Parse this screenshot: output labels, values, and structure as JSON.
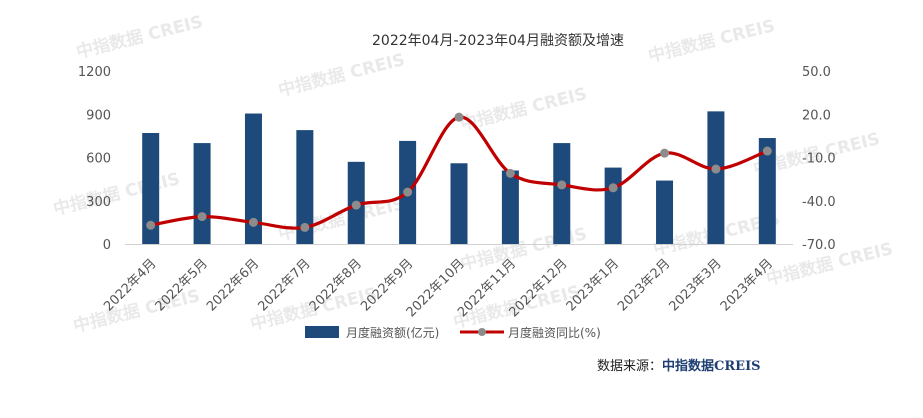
{
  "chart_data": {
    "type": "bar",
    "title": "2022年04月-2023年04月融资额及增速",
    "categories": [
      "2022年4月",
      "2022年5月",
      "2022年6月",
      "2022年7月",
      "2022年8月",
      "2022年9月",
      "2022年10月",
      "2022年11月",
      "2022年12月",
      "2023年1月",
      "2023年2月",
      "2023年3月",
      "2023年4月"
    ],
    "series": [
      {
        "name": "月度融资额(亿元)",
        "type": "bar",
        "axis": "left",
        "color": "#1d4a7a",
        "values": [
          770,
          700,
          905,
          790,
          570,
          715,
          560,
          510,
          700,
          530,
          440,
          920,
          735
        ]
      },
      {
        "name": "月度融资同比(%)",
        "type": "line",
        "axis": "right",
        "color": "#c00000",
        "marker_color": "#8c8c8c",
        "values": [
          -57.0,
          -51.0,
          -55.0,
          -58.5,
          -43.0,
          -34.0,
          18.0,
          -21.0,
          -29.0,
          -31.0,
          -7.0,
          -18.0,
          -5.5
        ]
      }
    ],
    "y_left": {
      "min": 0,
      "max": 1200,
      "ticks": [
        0,
        300,
        600,
        900,
        1200
      ],
      "tick_labels": [
        "0",
        "300",
        "600",
        "900",
        "1200"
      ]
    },
    "y_right": {
      "min": -70,
      "max": 50,
      "ticks": [
        -70,
        -40,
        -10,
        20,
        50
      ],
      "tick_labels": [
        "-70.0",
        "-40.0",
        "-10.0",
        "20.0",
        "50.0"
      ]
    },
    "grid": false,
    "legend_position": "bottom"
  },
  "watermark": "中指数据 CREIS",
  "source": {
    "label": "数据来源：",
    "brand": "中指数据CREIS"
  }
}
